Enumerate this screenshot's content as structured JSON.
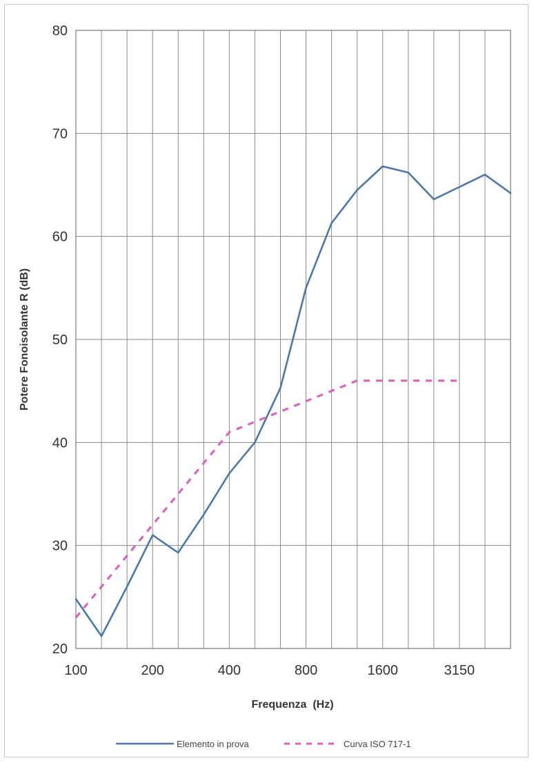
{
  "chart_data": {
    "type": "line",
    "title": "",
    "xlabel": "Frequenza  (Hz)",
    "ylabel": "Potere Fonoisolante R (dB)",
    "ylim": [
      20,
      80
    ],
    "yticks": [
      20,
      30,
      40,
      50,
      60,
      70,
      80
    ],
    "x": [
      "100",
      "125",
      "160",
      "200",
      "250",
      "315",
      "400",
      "500",
      "630",
      "800",
      "1000",
      "1250",
      "1600",
      "2000",
      "2500",
      "3150",
      "4000",
      "5000"
    ],
    "x_tick_labels": [
      "100",
      "200",
      "400",
      "800",
      "1600",
      "3150"
    ],
    "grid": true,
    "legend_position": "bottom",
    "series": [
      {
        "name": "Elemento in prova",
        "color": "#4a78a8",
        "style": "solid",
        "values": [
          24.8,
          21.2,
          26.0,
          31.0,
          29.3,
          33.0,
          37.0,
          40.0,
          45.3,
          55.0,
          61.3,
          64.5,
          66.8,
          66.2,
          63.6,
          64.8,
          66.0,
          64.2
        ]
      },
      {
        "name": "Curva ISO 717-1",
        "color": "#e05cbc",
        "style": "dashed",
        "values": [
          23,
          26,
          29,
          32,
          35,
          38,
          41,
          42,
          43,
          44,
          45,
          46,
          46,
          46,
          46,
          46,
          null,
          null
        ]
      }
    ]
  }
}
